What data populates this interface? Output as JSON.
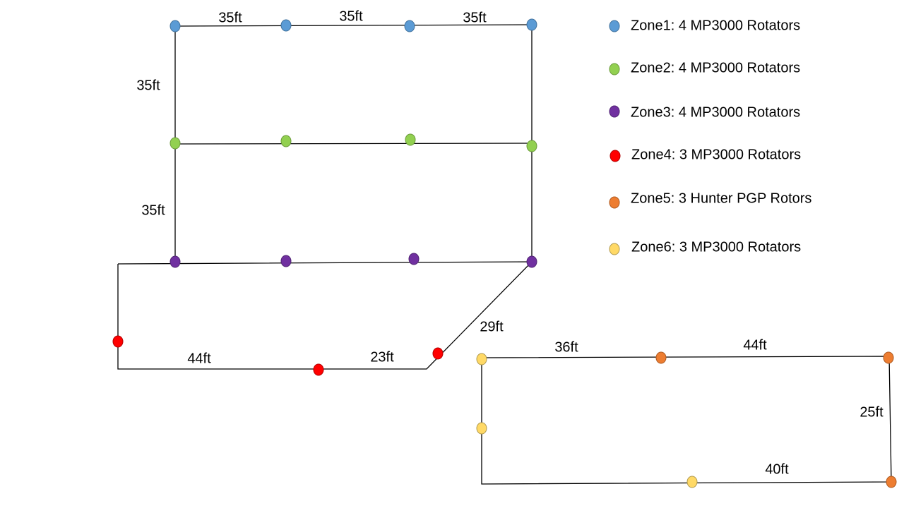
{
  "dimensions": [
    "35ft",
    "35ft",
    "35ft",
    "35ft",
    "35ft",
    "44ft",
    "23ft",
    "29ft",
    "36ft",
    "44ft",
    "25ft",
    "40ft"
  ],
  "legend": [
    "Zone1: 4 MP3000 Rotators",
    "Zone2: 4 MP3000 Rotators",
    "Zone3: 4 MP3000 Rotators",
    "Zone4: 3 MP3000 Rotators",
    "Zone5: 3 Hunter PGP Rotors",
    "Zone6: 3 MP3000 Rotators"
  ]
}
